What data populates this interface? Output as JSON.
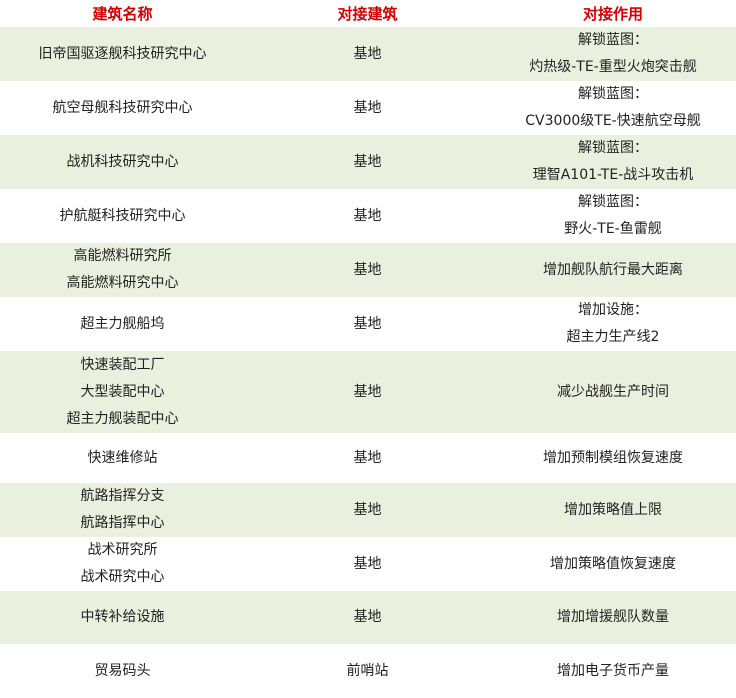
{
  "header": [
    "建筑名称",
    "对接建筑",
    "对接作用"
  ],
  "colors": {
    "header_text": "#d40000",
    "row_alt": "#e9f0dd"
  },
  "rows": [
    {
      "name": [
        "旧帝国驱逐舰科技研究中心"
      ],
      "dock": "基地",
      "effect": [
        "解锁蓝图：",
        "灼热级-TE-重型火炮突击舰"
      ]
    },
    {
      "name": [
        "航空母舰科技研究中心"
      ],
      "dock": "基地",
      "effect": [
        "解锁蓝图：",
        "CV3000级TE-快速航空母舰"
      ]
    },
    {
      "name": [
        "战机科技研究中心"
      ],
      "dock": "基地",
      "effect": [
        "解锁蓝图：",
        "理智A101-TE-战斗攻击机"
      ]
    },
    {
      "name": [
        "护航艇科技研究中心"
      ],
      "dock": "基地",
      "effect": [
        "解锁蓝图：",
        "野火-TE-鱼雷舰"
      ]
    },
    {
      "name": [
        "高能燃料研究所",
        "高能燃料研究中心"
      ],
      "dock": "基地",
      "effect": [
        "增加舰队航行最大距离"
      ]
    },
    {
      "name": [
        "超主力舰船坞"
      ],
      "dock": "基地",
      "effect": [
        "增加设施：",
        "超主力生产线2"
      ]
    },
    {
      "name": [
        "快速装配工厂",
        "大型装配中心",
        "超主力舰装配中心"
      ],
      "dock": "基地",
      "effect": [
        "减少战舰生产时间"
      ]
    },
    {
      "name": [
        "快速维修站"
      ],
      "dock": "基地",
      "effect": [
        "增加预制模组恢复速度"
      ]
    },
    {
      "name": [
        "航路指挥分支",
        "航路指挥中心"
      ],
      "dock": "基地",
      "effect": [
        "增加策略值上限"
      ]
    },
    {
      "name": [
        "战术研究所",
        "战术研究中心"
      ],
      "dock": "基地",
      "effect": [
        "增加策略值恢复速度"
      ]
    },
    {
      "name": [
        "中转补给设施"
      ],
      "dock": "基地",
      "effect": [
        "增加增援舰队数量"
      ]
    },
    {
      "name": [
        "贸易码头"
      ],
      "dock": "前哨站",
      "effect": [
        "增加电子货币产量"
      ]
    }
  ]
}
